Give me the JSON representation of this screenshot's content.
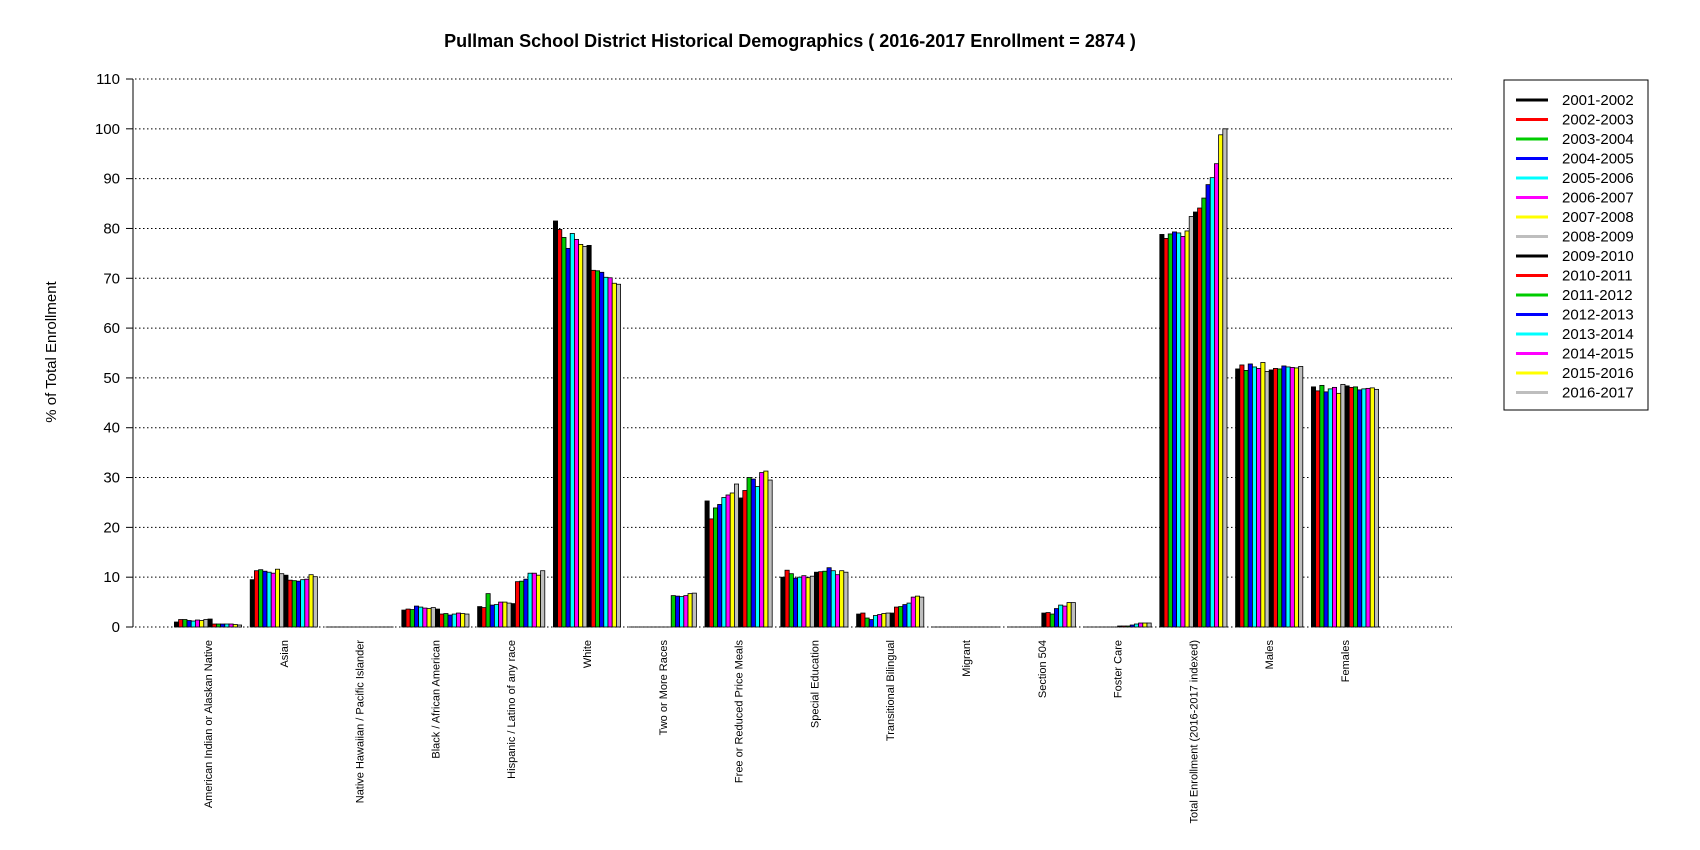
{
  "chart_data": {
    "type": "bar",
    "title": "Pullman School District Historical Demographics  ( 2016-2017 Enrollment =  2874 )",
    "xlabel": "",
    "ylabel": "% of Total Enrollment",
    "ylim": [
      0,
      110
    ],
    "yticks": [
      0,
      10,
      20,
      30,
      40,
      50,
      60,
      70,
      80,
      90,
      100,
      110
    ],
    "grid": "horizontal dotted",
    "legend_position": "top-right",
    "categories": [
      "American Indian or Alaskan Native",
      "Asian",
      "Native Hawaiian / Pacific Islander",
      "Black / African American",
      "Hispanic / Latino of any race",
      "White",
      "Two or More Races",
      "Free or Reduced Price Meals",
      "Special Education",
      "Transitional Bilingual",
      "Migrant",
      "Section 504",
      "Foster Care",
      "Total Enrollment (2016-2017 indexed)",
      "Males",
      "Females"
    ],
    "series": [
      {
        "name": "2001-2002",
        "color": "#000000",
        "values": [
          1.0,
          9.5,
          0.0,
          3.4,
          4.1,
          81.5,
          0.0,
          25.3,
          10.0,
          2.6,
          0.0,
          0.0,
          0.0,
          78.8,
          51.8,
          48.2
        ]
      },
      {
        "name": "2002-2003",
        "color": "#ff0000",
        "values": [
          1.5,
          11.3,
          0.0,
          3.6,
          3.9,
          79.8,
          0.0,
          21.7,
          11.4,
          2.8,
          0.0,
          0.0,
          0.0,
          78.0,
          52.6,
          47.4
        ]
      },
      {
        "name": "2003-2004",
        "color": "#00cc00",
        "values": [
          1.5,
          11.5,
          0.0,
          3.5,
          6.7,
          78.2,
          0.0,
          23.9,
          10.7,
          1.8,
          0.0,
          0.0,
          0.0,
          78.9,
          51.5,
          48.5
        ]
      },
      {
        "name": "2004-2005",
        "color": "#0000ff",
        "values": [
          1.3,
          11.2,
          0.0,
          4.2,
          4.4,
          76.0,
          0.0,
          24.6,
          9.8,
          1.5,
          0.0,
          0.0,
          0.0,
          79.3,
          52.8,
          47.2
        ]
      },
      {
        "name": "2005-2006",
        "color": "#00ffff",
        "values": [
          1.2,
          11.0,
          0.0,
          4.0,
          4.5,
          79.0,
          0.0,
          26.0,
          10.0,
          2.3,
          0.0,
          0.0,
          0.0,
          79.1,
          52.2,
          47.8
        ]
      },
      {
        "name": "2006-2007",
        "color": "#ff00ff",
        "values": [
          1.4,
          10.8,
          0.0,
          3.8,
          5.0,
          77.8,
          0.0,
          26.5,
          10.3,
          2.5,
          0.0,
          0.0,
          0.0,
          78.4,
          51.9,
          48.1
        ]
      },
      {
        "name": "2007-2008",
        "color": "#ffff00",
        "values": [
          1.3,
          11.6,
          0.0,
          3.7,
          5.0,
          76.8,
          0.0,
          26.9,
          9.9,
          2.7,
          0.0,
          0.0,
          0.0,
          79.5,
          53.1,
          46.9
        ]
      },
      {
        "name": "2008-2009",
        "color": "#bebebe",
        "values": [
          1.5,
          10.7,
          0.0,
          3.9,
          4.8,
          76.4,
          0.0,
          28.7,
          10.2,
          2.8,
          0.0,
          0.0,
          0.0,
          82.4,
          51.3,
          48.7
        ]
      },
      {
        "name": "2009-2010",
        "color": "#000000",
        "values": [
          1.6,
          10.4,
          0.0,
          3.6,
          4.7,
          76.6,
          0.0,
          25.9,
          11.0,
          2.8,
          0.0,
          2.8,
          0.2,
          83.3,
          51.6,
          48.4
        ]
      },
      {
        "name": "2010-2011",
        "color": "#ff0000",
        "values": [
          0.6,
          9.4,
          0.0,
          2.6,
          9.1,
          71.6,
          0.0,
          27.4,
          11.1,
          4.0,
          0.0,
          2.9,
          0.2,
          84.1,
          51.9,
          48.1
        ]
      },
      {
        "name": "2011-2012",
        "color": "#00cc00",
        "values": [
          0.6,
          9.3,
          0.0,
          2.7,
          9.2,
          71.5,
          6.3,
          30.0,
          11.2,
          4.1,
          0.0,
          2.6,
          0.2,
          86.1,
          51.8,
          48.2
        ]
      },
      {
        "name": "2012-2013",
        "color": "#0000ff",
        "values": [
          0.6,
          9.2,
          0.0,
          2.4,
          9.6,
          71.2,
          6.2,
          29.7,
          11.9,
          4.5,
          0.0,
          3.7,
          0.4,
          88.8,
          52.4,
          47.6
        ]
      },
      {
        "name": "2013-2014",
        "color": "#00ffff",
        "values": [
          0.6,
          9.5,
          0.0,
          2.6,
          10.8,
          70.2,
          6.1,
          28.2,
          11.3,
          4.8,
          0.0,
          4.4,
          0.6,
          90.2,
          52.2,
          47.8
        ]
      },
      {
        "name": "2014-2015",
        "color": "#ff00ff",
        "values": [
          0.6,
          9.6,
          0.0,
          2.8,
          10.8,
          70.1,
          6.3,
          31.0,
          10.5,
          6.0,
          0.0,
          4.2,
          0.8,
          93.0,
          52.1,
          47.9
        ]
      },
      {
        "name": "2015-2016",
        "color": "#ffff00",
        "values": [
          0.5,
          10.5,
          0.0,
          2.7,
          10.4,
          69.0,
          6.7,
          31.3,
          11.3,
          6.2,
          0.0,
          4.9,
          0.8,
          98.8,
          52.0,
          48.0
        ]
      },
      {
        "name": "2016-2017",
        "color": "#bebebe",
        "values": [
          0.4,
          10.1,
          0.0,
          2.6,
          11.3,
          68.8,
          6.8,
          29.5,
          11.0,
          6.0,
          0.0,
          4.9,
          0.8,
          100.0,
          52.3,
          47.7
        ]
      }
    ]
  }
}
